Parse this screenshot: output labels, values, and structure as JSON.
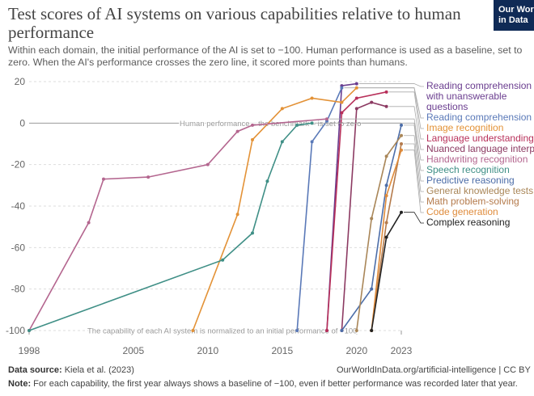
{
  "chart_data": {
    "type": "line",
    "title": "Test scores of AI systems on various capabilities relative to human performance",
    "subtitle": "Within each domain, the initial performance of the AI is set to −100. Human performance is used as a baseline, set to zero. When the AI's performance crosses the zero line, it scored more points than humans.",
    "logo": "Our World in Data",
    "annotations": [
      "Human performance – the benchmark – is set to zero",
      "The capability of each AI system is normalized to an initial performance of −100"
    ],
    "source_label": "Data source:",
    "source": "Kiela et al. (2023)",
    "url": "OurWorldInData.org/artificial-intelligence | CC BY",
    "note_label": "Note:",
    "note": "For each capability, the first year always shows a baseline of −100, even if better performance was recorded later that year.",
    "xlim": [
      1998,
      2023
    ],
    "xticks": [
      1998,
      2005,
      2010,
      2015,
      2020,
      2023
    ],
    "ylim": [
      -100,
      20
    ],
    "yticks": [
      -100,
      -80,
      -60,
      -40,
      -20,
      0,
      20
    ],
    "grid": true,
    "series": [
      {
        "name": "Reading comprehension with unanswerable questions",
        "color": "#6a3d8f",
        "x": [
          2018,
          2019,
          2020
        ],
        "values": [
          -100,
          18,
          19
        ]
      },
      {
        "name": "Reading comprehension",
        "color": "#5a79b8",
        "x": [
          2016,
          2017,
          2018,
          2019
        ],
        "values": [
          -100,
          -9,
          1,
          17
        ]
      },
      {
        "name": "Image recognition",
        "color": "#e39237",
        "x": [
          2009,
          2012,
          2013,
          2015,
          2017,
          2019,
          2020
        ],
        "values": [
          -100,
          -44,
          -8,
          7,
          12,
          10,
          17
        ]
      },
      {
        "name": "Language understanding",
        "color": "#b8305a",
        "x": [
          2018,
          2019,
          2020,
          2022
        ],
        "values": [
          -100,
          5,
          12,
          15
        ]
      },
      {
        "name": "Nuanced language interpretation",
        "color": "#8c3a62",
        "x": [
          2019,
          2020,
          2021,
          2022
        ],
        "values": [
          -100,
          7,
          10,
          8
        ]
      },
      {
        "name": "Handwriting recognition",
        "color": "#b4668f",
        "x": [
          1998,
          2002,
          2003,
          2006,
          2010,
          2012,
          2013,
          2018
        ],
        "values": [
          -100,
          -48,
          -27,
          -26,
          -20,
          -4,
          -1,
          2
        ]
      },
      {
        "name": "Speech recognition",
        "color": "#3f8f86",
        "x": [
          1998,
          2011,
          2013,
          2014,
          2015,
          2016,
          2017
        ],
        "values": [
          -100,
          -66,
          -53,
          -28,
          -9,
          -1,
          0
        ]
      },
      {
        "name": "Predictive reasoning",
        "color": "#4c6da8",
        "x": [
          2019,
          2021,
          2022,
          2023
        ],
        "values": [
          -100,
          -80,
          -30,
          -1
        ]
      },
      {
        "name": "General knowledge tests",
        "color": "#a98658",
        "x": [
          2020,
          2021,
          2022,
          2023
        ],
        "values": [
          -100,
          -46,
          -16,
          -6
        ]
      },
      {
        "name": "Math problem-solving",
        "color": "#b47a4b",
        "x": [
          2021,
          2022,
          2023
        ],
        "values": [
          -100,
          -48,
          -10
        ]
      },
      {
        "name": "Code generation",
        "color": "#df8b3b",
        "x": [
          2021,
          2022,
          2023
        ],
        "values": [
          -100,
          -35,
          -13
        ]
      },
      {
        "name": "Complex reasoning",
        "color": "#222222",
        "x": [
          2021,
          2022,
          2023
        ],
        "values": [
          -100,
          -55,
          -43
        ]
      }
    ]
  }
}
